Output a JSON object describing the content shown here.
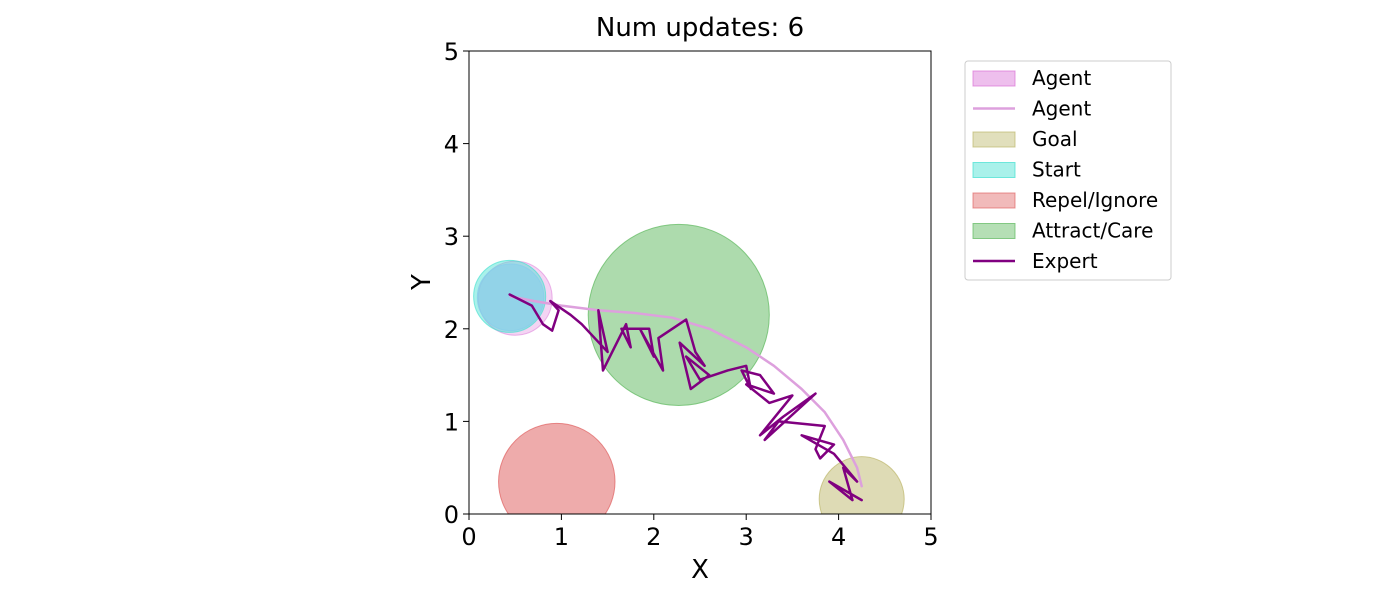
{
  "chart_data": {
    "type": "scatter",
    "title": "Num updates: 6",
    "xlabel": "X",
    "ylabel": "Y",
    "xlim": [
      0,
      5
    ],
    "ylim": [
      0,
      5
    ],
    "xticks": [
      "0",
      "1",
      "2",
      "3",
      "4",
      "5"
    ],
    "yticks": [
      "0",
      "1",
      "2",
      "3",
      "4",
      "5"
    ],
    "grid": false,
    "legend_position": "outside-top-right",
    "legend": [
      {
        "label": "Agent",
        "kind": "patch",
        "color": "#da70d6"
      },
      {
        "label": "Agent",
        "kind": "line",
        "color": "#dda0dd"
      },
      {
        "label": "Goal",
        "kind": "patch",
        "color": "#bdb76b"
      },
      {
        "label": "Start",
        "kind": "patch",
        "color": "#40e0d0"
      },
      {
        "label": "Repel/Ignore",
        "kind": "patch",
        "color": "#e06666"
      },
      {
        "label": "Attract/Care",
        "kind": "patch",
        "color": "#5cb85c"
      },
      {
        "label": "Expert",
        "kind": "line",
        "color": "#800080"
      }
    ],
    "circles": [
      {
        "name": "Attract/Care",
        "cx": 2.27,
        "cy": 2.15,
        "r": 0.98,
        "color": "#5cb85c",
        "opacity": 0.5
      },
      {
        "name": "Repel/Ignore",
        "cx": 0.95,
        "cy": 0.35,
        "r": 0.63,
        "color": "#e06666",
        "opacity": 0.55
      },
      {
        "name": "Goal",
        "cx": 4.25,
        "cy": 0.16,
        "r": 0.46,
        "color": "#bdb76b",
        "opacity": 0.5
      },
      {
        "name": "Agent",
        "cx": 0.5,
        "cy": 2.33,
        "r": 0.4,
        "color": "#da70d6",
        "opacity": 0.3
      },
      {
        "name": "Start",
        "cx": 0.44,
        "cy": 2.35,
        "r": 0.39,
        "color": "#40e0d0",
        "opacity": 0.45
      },
      {
        "name": "Start-overlap",
        "cx": 0.45,
        "cy": 2.34,
        "r": 0.36,
        "color": "#87ceeb",
        "opacity": 0.6
      }
    ],
    "agent_path": {
      "name": "Agent",
      "color": "#dda0dd",
      "x": [
        0.45,
        0.7,
        1.0,
        1.4,
        1.8,
        2.2,
        2.6,
        3.0,
        3.3,
        3.6,
        3.85,
        4.05,
        4.2,
        4.25
      ],
      "y": [
        2.35,
        2.3,
        2.25,
        2.2,
        2.17,
        2.12,
        2.0,
        1.8,
        1.6,
        1.35,
        1.1,
        0.8,
        0.5,
        0.3
      ]
    },
    "expert_path": {
      "name": "Expert",
      "color": "#800080",
      "x": [
        0.44,
        0.68,
        0.8,
        0.9,
        0.97,
        0.88,
        1.1,
        1.22,
        1.5,
        1.4,
        1.45,
        1.7,
        1.75,
        1.65,
        1.95,
        2.0,
        1.85,
        2.1,
        2.05,
        2.35,
        2.45,
        2.55,
        2.28,
        2.4,
        2.6,
        2.35,
        2.5,
        2.8,
        3.0,
        3.05,
        2.95,
        3.15,
        3.3,
        3.0,
        3.25,
        3.5,
        3.15,
        3.4,
        3.75,
        3.2,
        3.35,
        3.85,
        3.75,
        3.8,
        3.95,
        3.6,
        3.95,
        4.2,
        4.05,
        4.15,
        3.9,
        4.25
      ],
      "y": [
        2.37,
        2.25,
        2.05,
        1.98,
        2.2,
        2.3,
        2.15,
        2.05,
        1.75,
        2.2,
        1.55,
        2.05,
        1.8,
        2.0,
        2.0,
        1.7,
        2.0,
        1.55,
        1.9,
        2.1,
        1.75,
        1.6,
        1.85,
        1.35,
        1.5,
        1.7,
        1.45,
        1.55,
        1.6,
        1.35,
        1.55,
        1.5,
        1.3,
        1.4,
        1.2,
        1.28,
        0.85,
        1.05,
        1.3,
        0.8,
        1.0,
        0.95,
        0.7,
        0.6,
        0.75,
        0.85,
        0.65,
        0.35,
        0.5,
        0.15,
        0.35,
        0.15
      ]
    }
  }
}
